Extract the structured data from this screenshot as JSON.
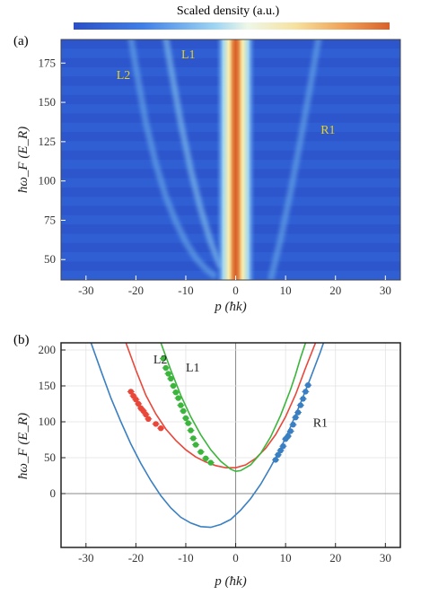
{
  "colorbar": {
    "title": "Scaled density (a.u.)"
  },
  "chart_data": [
    {
      "panel": "(a)",
      "type": "heatmap",
      "title": "",
      "xlabel": "p (ħk)",
      "ylabel": "ħω_F (E_R)",
      "xlim": [
        -35,
        33
      ],
      "ylim": [
        37,
        190
      ],
      "xticks": [
        -30,
        -20,
        -10,
        0,
        10,
        20,
        30
      ],
      "yticks": [
        50,
        75,
        100,
        125,
        150,
        175
      ],
      "colorscale": [
        "#2b4fc7",
        "#3f7fe8",
        "#9fd6f2",
        "#f6efb0",
        "#f3c26a",
        "#d9622a"
      ],
      "branch_labels": [
        {
          "text": "L1",
          "x": -9.5,
          "y": 178
        },
        {
          "text": "L2",
          "x": -22.5,
          "y": 165
        },
        {
          "text": "R1",
          "x": 18.5,
          "y": 130
        }
      ],
      "central_peak_x": 0
    },
    {
      "panel": "(b)",
      "type": "line",
      "title": "",
      "xlabel": "p (ħk)",
      "ylabel": "ħω_F (E_R)",
      "xlim": [
        -35,
        33
      ],
      "ylim": [
        -75,
        210
      ],
      "xticks": [
        -30,
        -20,
        -10,
        0,
        10,
        20,
        30
      ],
      "yticks": [
        0,
        50,
        100,
        150,
        200
      ],
      "grid": true,
      "series": [
        {
          "name": "L2",
          "color": "#e8473a",
          "curve": [
            [
              -22,
              210
            ],
            [
              -20,
              172
            ],
            [
              -18,
              137
            ],
            [
              -16,
              111
            ],
            [
              -14,
              90
            ],
            [
              -12,
              74
            ],
            [
              -10,
              61
            ],
            [
              -8,
              51
            ],
            [
              -6,
              44
            ],
            [
              -4,
              39
            ],
            [
              -2,
              36
            ],
            [
              0,
              36
            ],
            [
              2,
              40
            ],
            [
              4,
              49
            ],
            [
              6,
              63
            ],
            [
              8,
              82
            ],
            [
              10,
              107
            ],
            [
              12,
              138
            ],
            [
              14,
              175
            ],
            [
              16,
              210
            ]
          ],
          "points": [
            [
              -21,
              142
            ],
            [
              -20.5,
              136
            ],
            [
              -20,
              131
            ],
            [
              -19.5,
              125
            ],
            [
              -19,
              119
            ],
            [
              -18.5,
              115
            ],
            [
              -18,
              110
            ],
            [
              -17.5,
              104
            ],
            [
              -16,
              97
            ],
            [
              -15,
              91
            ]
          ]
        },
        {
          "name": "L1",
          "color": "#3bb53b",
          "curve": [
            [
              -15,
              210
            ],
            [
              -13,
              172
            ],
            [
              -11,
              137
            ],
            [
              -9,
              107
            ],
            [
              -7,
              82
            ],
            [
              -5,
              61
            ],
            [
              -3,
              45
            ],
            [
              -1,
              34
            ],
            [
              0,
              31
            ],
            [
              1,
              32
            ],
            [
              3,
              40
            ],
            [
              5,
              56
            ],
            [
              7,
              79
            ],
            [
              9,
              109
            ],
            [
              11,
              145
            ],
            [
              12,
              166
            ],
            [
              13,
              189
            ],
            [
              14,
              210
            ]
          ],
          "points": [
            [
              -14.5,
              188
            ],
            [
              -14,
              175
            ],
            [
              -13.5,
              167
            ],
            [
              -13,
              160
            ],
            [
              -12.5,
              150
            ],
            [
              -12,
              141
            ],
            [
              -11.5,
              133
            ],
            [
              -11,
              123
            ],
            [
              -10.5,
              115
            ],
            [
              -10,
              105
            ],
            [
              -9.5,
              98
            ],
            [
              -9,
              88
            ],
            [
              -8.5,
              77
            ],
            [
              -8,
              68
            ],
            [
              -7,
              58
            ],
            [
              -6,
              49
            ],
            [
              -5,
              43
            ]
          ]
        },
        {
          "name": "R1",
          "color": "#3a7fc1",
          "curve": [
            [
              -29,
              210
            ],
            [
              -27,
              171
            ],
            [
              -25,
              133
            ],
            [
              -23,
              100
            ],
            [
              -21,
              69
            ],
            [
              -19,
              42
            ],
            [
              -17,
              18
            ],
            [
              -15,
              -3
            ],
            [
              -13,
              -20
            ],
            [
              -11,
              -33
            ],
            [
              -9,
              -41
            ],
            [
              -7,
              -46
            ],
            [
              -5,
              -47
            ],
            [
              -3,
              -43
            ],
            [
              -1,
              -36
            ],
            [
              1,
              -23
            ],
            [
              3,
              -7
            ],
            [
              5,
              13
            ],
            [
              7,
              37
            ],
            [
              9,
              63
            ],
            [
              11,
              93
            ],
            [
              13,
              126
            ],
            [
              15,
              161
            ],
            [
              17,
              198
            ],
            [
              17.6,
              210
            ]
          ],
          "points": [
            [
              8,
              47
            ],
            [
              8.5,
              54
            ],
            [
              9,
              60
            ],
            [
              9.5,
              66
            ],
            [
              10,
              76
            ],
            [
              10.5,
              80
            ],
            [
              11,
              87
            ],
            [
              11.5,
              96
            ],
            [
              12,
              106
            ],
            [
              12.5,
              113
            ],
            [
              13,
              123
            ],
            [
              13.5,
              132
            ],
            [
              14,
              142
            ],
            [
              14.5,
              151
            ]
          ]
        }
      ],
      "branch_labels": [
        {
          "text": "L2",
          "x": -16.5,
          "y": 181
        },
        {
          "text": "L1",
          "x": -10,
          "y": 170
        },
        {
          "text": "R1",
          "x": 15.5,
          "y": 93
        }
      ]
    }
  ]
}
